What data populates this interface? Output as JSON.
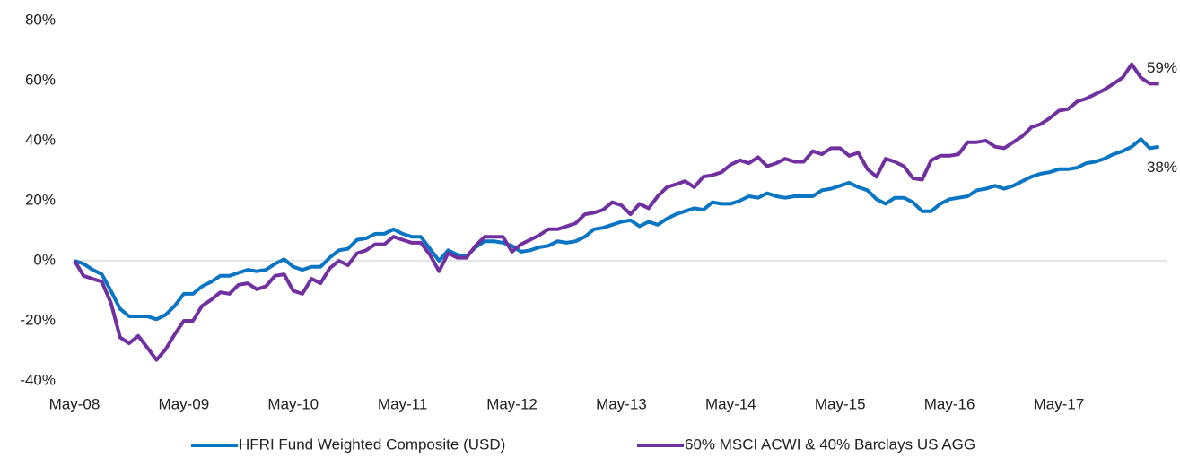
{
  "chart_data": {
    "type": "line",
    "categories": [
      "May-08",
      null,
      null,
      null,
      null,
      null,
      null,
      null,
      null,
      null,
      null,
      null,
      "May-09",
      null,
      null,
      null,
      null,
      null,
      null,
      null,
      null,
      null,
      null,
      null,
      "May-10",
      null,
      null,
      null,
      null,
      null,
      null,
      null,
      null,
      null,
      null,
      null,
      "May-11",
      null,
      null,
      null,
      null,
      null,
      null,
      null,
      null,
      null,
      null,
      null,
      "May-12",
      null,
      null,
      null,
      null,
      null,
      null,
      null,
      null,
      null,
      null,
      null,
      "May-13",
      null,
      null,
      null,
      null,
      null,
      null,
      null,
      null,
      null,
      null,
      null,
      "May-14",
      null,
      null,
      null,
      null,
      null,
      null,
      null,
      null,
      null,
      null,
      null,
      "May-15",
      null,
      null,
      null,
      null,
      null,
      null,
      null,
      null,
      null,
      null,
      null,
      "May-16",
      null,
      null,
      null,
      null,
      null,
      null,
      null,
      null,
      null,
      null,
      null,
      "May-17",
      null,
      null,
      null,
      null,
      null,
      null,
      null,
      null,
      null,
      null,
      null
    ],
    "series": [
      {
        "name": "HFRI Fund Weighted Composite (USD)",
        "color": "#0a75c2",
        "values": [
          0,
          -1,
          -3,
          -4.5,
          -10,
          -16,
          -18.5,
          -18.5,
          -18.5,
          -19.5,
          -18,
          -15,
          -11,
          -11,
          -8.5,
          -7,
          -5,
          -5,
          -4,
          -3,
          -3.5,
          -3,
          -1,
          0.5,
          -2,
          -3,
          -2,
          -2,
          1,
          3.5,
          4,
          7,
          7.5,
          9,
          9,
          10.5,
          9,
          8,
          8,
          4,
          0,
          3.5,
          2,
          1.5,
          4.5,
          6.5,
          6.5,
          6,
          5,
          3,
          3.5,
          4.5,
          5,
          6.5,
          6,
          6.5,
          8,
          10.5,
          11,
          12,
          13,
          13.5,
          11.5,
          13,
          12,
          14,
          15.5,
          16.5,
          17.5,
          17,
          19.5,
          19,
          19,
          20,
          21.5,
          21,
          22.5,
          21.5,
          21,
          21.5,
          21.5,
          21.5,
          23.5,
          24,
          25,
          26,
          24.5,
          23.5,
          20.5,
          19,
          21,
          21,
          19.5,
          16.5,
          16.5,
          19,
          20.5,
          21,
          21.5,
          23.5,
          24,
          25,
          24,
          25,
          26.5,
          28,
          29,
          29.5,
          30.5,
          30.5,
          31,
          32.5,
          33,
          34,
          35.5,
          36.5,
          38,
          40.5,
          37.5,
          38
        ],
        "value_labels": [
          null,
          null,
          null,
          null,
          null,
          null,
          null,
          null,
          null,
          null,
          null,
          null,
          null,
          null,
          null,
          null,
          null,
          null,
          null,
          null,
          null,
          null,
          null,
          null,
          null,
          null,
          null,
          null,
          null,
          null,
          null,
          null,
          null,
          null,
          null,
          null,
          null,
          null,
          null,
          null,
          null,
          null,
          null,
          null,
          null,
          null,
          null,
          null,
          null,
          null,
          null,
          null,
          null,
          null,
          null,
          null,
          null,
          null,
          null,
          null,
          null,
          null,
          null,
          null,
          null,
          null,
          null,
          null,
          null,
          null,
          null,
          null,
          null,
          null,
          null,
          null,
          null,
          null,
          null,
          null,
          null,
          null,
          null,
          null,
          null,
          null,
          null,
          null,
          null,
          null,
          null,
          null,
          null,
          null,
          null,
          null,
          null,
          null,
          null,
          null,
          null,
          null,
          null,
          null,
          null,
          null,
          null,
          null,
          null,
          null,
          null,
          null,
          null,
          null,
          null,
          null,
          null,
          null,
          null,
          "38%"
        ]
      },
      {
        "name": "60% MSCI ACWI & 40% Barclays US AGG",
        "color": "#7030a0",
        "values": [
          0,
          -5,
          -6,
          -7,
          -14,
          -25.5,
          -27.5,
          -25,
          -29,
          -33,
          -29.5,
          -24.5,
          -20,
          -20,
          -15,
          -13,
          -10.5,
          -11,
          -8,
          -7.5,
          -9.5,
          -8.5,
          -5,
          -4.5,
          -10,
          -11,
          -6,
          -7.5,
          -2.5,
          0,
          -1.5,
          2.5,
          3.5,
          5.5,
          5.5,
          8,
          7,
          6,
          6,
          2,
          -3.5,
          2.5,
          1,
          1,
          5,
          8,
          8,
          8,
          3,
          5.5,
          7,
          8.5,
          10.5,
          10.5,
          11.5,
          12.5,
          15.5,
          16,
          17,
          19.5,
          18.5,
          15.5,
          19,
          17.5,
          21.5,
          24.5,
          25.5,
          26.5,
          24.5,
          28,
          28.5,
          29.5,
          32,
          33.5,
          32.5,
          34.5,
          31.5,
          32.5,
          34,
          33,
          33,
          36.5,
          35.5,
          37.5,
          37.5,
          35,
          36,
          30.5,
          28,
          34,
          33,
          31.5,
          27.5,
          27,
          33.5,
          35,
          35,
          35.5,
          39.5,
          39.5,
          40,
          38,
          37.5,
          39.5,
          41.5,
          44.5,
          45.5,
          47.5,
          50,
          50.5,
          53,
          54,
          55.5,
          57,
          59,
          61,
          65.5,
          61,
          59,
          59
        ],
        "value_labels": [
          null,
          null,
          null,
          null,
          null,
          null,
          null,
          null,
          null,
          null,
          null,
          null,
          null,
          null,
          null,
          null,
          null,
          null,
          null,
          null,
          null,
          null,
          null,
          null,
          null,
          null,
          null,
          null,
          null,
          null,
          null,
          null,
          null,
          null,
          null,
          null,
          null,
          null,
          null,
          null,
          null,
          null,
          null,
          null,
          null,
          null,
          null,
          null,
          null,
          null,
          null,
          null,
          null,
          null,
          null,
          null,
          null,
          null,
          null,
          null,
          null,
          null,
          null,
          null,
          null,
          null,
          null,
          null,
          null,
          null,
          null,
          null,
          null,
          null,
          null,
          null,
          null,
          null,
          null,
          null,
          null,
          null,
          null,
          null,
          null,
          null,
          null,
          null,
          null,
          null,
          null,
          null,
          null,
          null,
          null,
          null,
          null,
          null,
          null,
          null,
          null,
          null,
          null,
          null,
          null,
          null,
          null,
          null,
          null,
          null,
          null,
          null,
          null,
          null,
          null,
          null,
          null,
          null,
          null,
          "59%"
        ]
      }
    ],
    "ylim": [
      -40,
      80
    ],
    "yticks": [
      {
        "value": -40,
        "label": "-40%"
      },
      {
        "value": -20,
        "label": "-20%"
      },
      {
        "value": 0,
        "label": "0%"
      },
      {
        "value": 20,
        "label": "20%"
      },
      {
        "value": 40,
        "label": "40%"
      },
      {
        "value": 60,
        "label": "60%"
      },
      {
        "value": 80,
        "label": "80%"
      }
    ],
    "zero_line": true,
    "legend": "bottom"
  }
}
